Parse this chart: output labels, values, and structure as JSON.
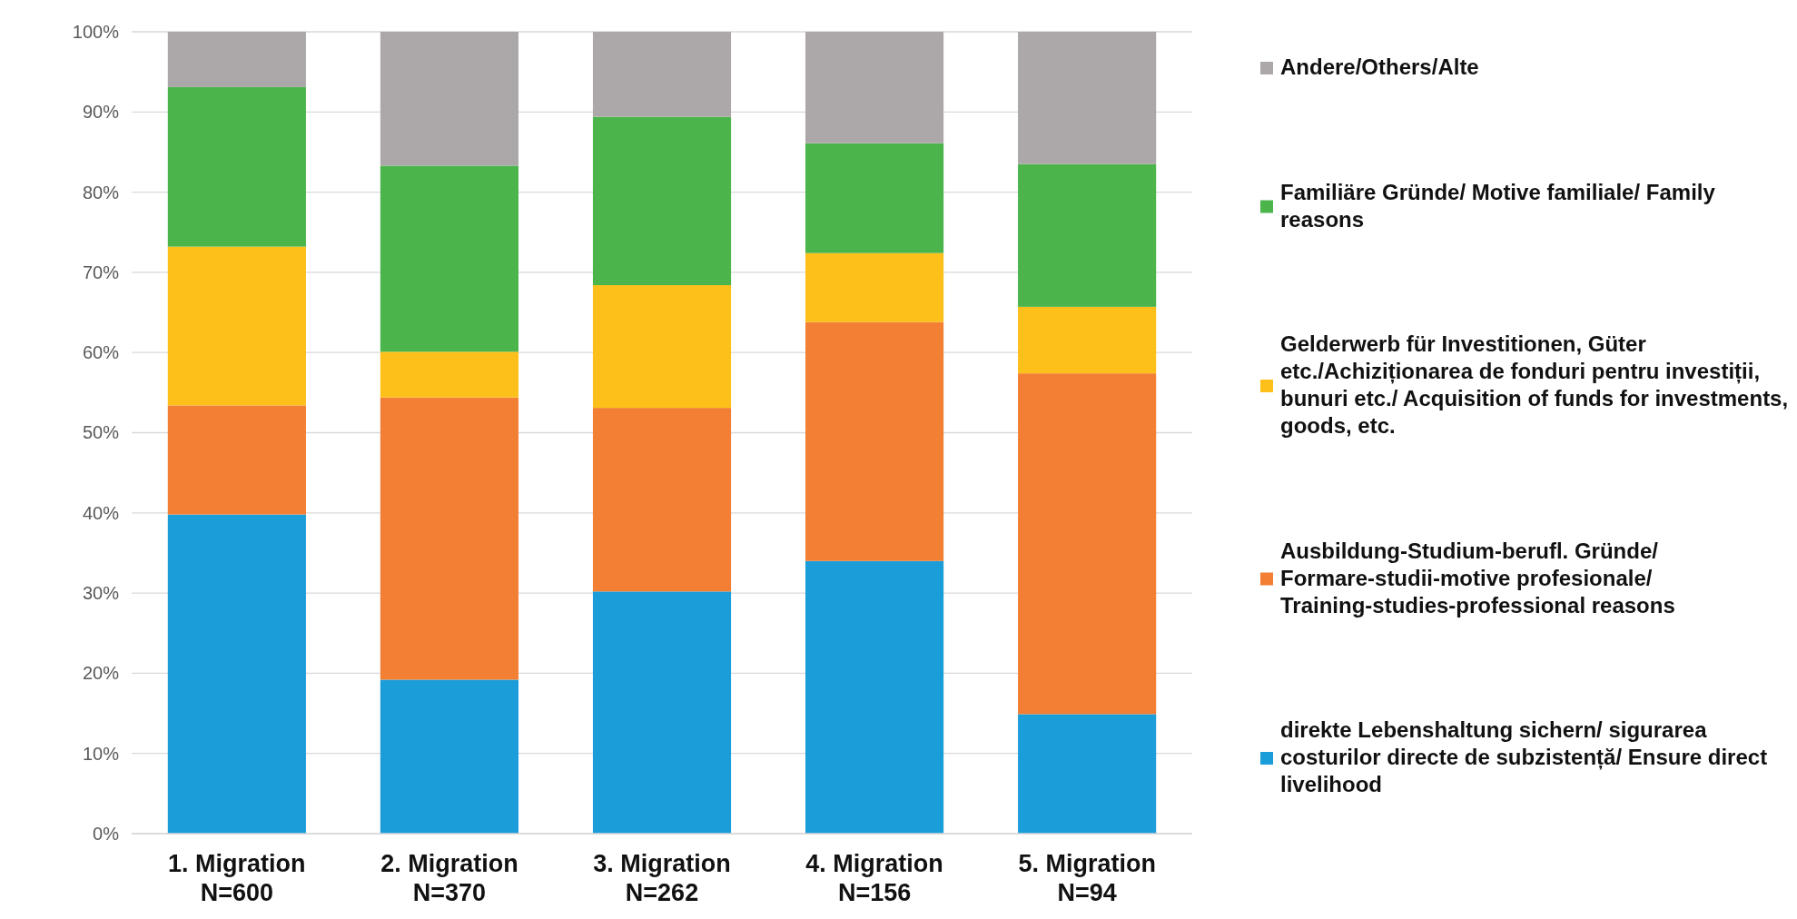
{
  "chart_data": {
    "type": "bar",
    "stacked": true,
    "categories": [
      "1. Migration\nN=600",
      "2. Migration\nN=370",
      "3. Migration\nN=262",
      "4. Migration\nN=156",
      "5. Migration\nN=94"
    ],
    "ylim": [
      0,
      100
    ],
    "yticks": [
      {
        "value": 0,
        "label": "0%"
      },
      {
        "value": 10,
        "label": "10%"
      },
      {
        "value": 20,
        "label": "20%"
      },
      {
        "value": 30,
        "label": "30%"
      },
      {
        "value": 40,
        "label": "40%"
      },
      {
        "value": 50,
        "label": "50%"
      },
      {
        "value": 60,
        "label": "60%"
      },
      {
        "value": 70,
        "label": "70%"
      },
      {
        "value": 80,
        "label": "80%"
      },
      {
        "value": 90,
        "label": "90%"
      },
      {
        "value": 100,
        "label": "100%"
      }
    ],
    "grid": "y",
    "legend": "right",
    "series": [
      {
        "name": "direkte Lebenshaltung sichern/ sigurarea costurilor directe de subzistență/ Ensure direct livelihood",
        "color": "#1b9dd9",
        "values": [
          39.8,
          19.2,
          30.2,
          34.0,
          14.9
        ]
      },
      {
        "name": "Ausbildung-Studium-berufl. Gründe/ Formare-studii-motive profesionale/ Training-studies-professional reasons",
        "color": "#f27f33",
        "values": [
          13.6,
          35.2,
          22.9,
          29.8,
          42.5
        ]
      },
      {
        "name": "Gelderwerb für Investitionen, Güter etc./Achiziționarea de fonduri pentru investiții, bunuri etc./ Acquisition of funds for investments, goods, etc.",
        "color": "#fdc01a",
        "values": [
          19.8,
          5.7,
          15.3,
          8.6,
          8.3
        ]
      },
      {
        "name": "Familiäre Gründe/ Motive familiale/ Family reasons",
        "color": "#4bb54b",
        "values": [
          19.9,
          23.2,
          21.0,
          13.7,
          17.8
        ]
      },
      {
        "name": "Andere/Others/Alte",
        "color": "#aca8a9",
        "values": [
          6.9,
          16.7,
          10.6,
          13.9,
          16.5
        ]
      }
    ]
  }
}
